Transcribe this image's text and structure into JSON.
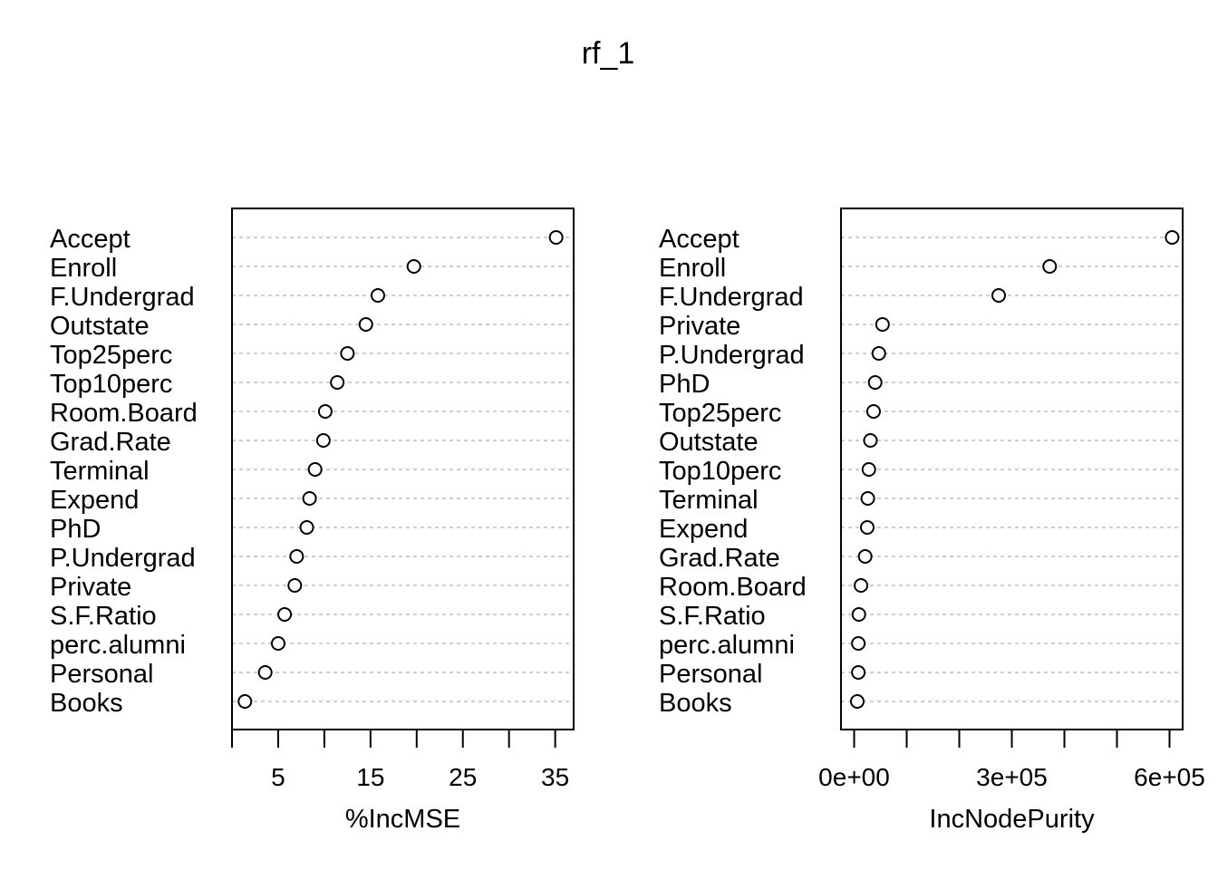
{
  "title": "rf_1",
  "chart_data": [
    {
      "type": "scatter",
      "subtype": "dotchart",
      "xlabel": "%IncMSE",
      "ylabel": "",
      "xlim": [
        0,
        37
      ],
      "ticks": [
        0,
        5,
        10,
        15,
        20,
        25,
        30,
        35
      ],
      "tick_labels": [
        "",
        "5",
        "",
        "15",
        "",
        "25",
        "",
        "35"
      ],
      "grid": true,
      "categories": [
        "Accept",
        "Enroll",
        "F.Undergrad",
        "Outstate",
        "Top25perc",
        "Top10perc",
        "Room.Board",
        "Grad.Rate",
        "Terminal",
        "Expend",
        "PhD",
        "P.Undergrad",
        "Private",
        "S.F.Ratio",
        "perc.alumni",
        "Personal",
        "Books"
      ],
      "values": [
        35.1,
        19.7,
        15.8,
        14.5,
        12.5,
        11.4,
        10.1,
        9.9,
        9.0,
        8.4,
        8.1,
        7.0,
        6.8,
        5.7,
        5.0,
        3.6,
        1.4
      ]
    },
    {
      "type": "scatter",
      "subtype": "dotchart",
      "xlabel": "IncNodePurity",
      "ylabel": "",
      "xlim": [
        -25000,
        625000
      ],
      "ticks": [
        0,
        100000,
        200000,
        300000,
        400000,
        500000,
        600000
      ],
      "tick_labels": [
        "0e+00",
        "",
        "",
        "3e+05",
        "",
        "",
        "6e+05"
      ],
      "grid": true,
      "categories": [
        "Accept",
        "Enroll",
        "F.Undergrad",
        "Private",
        "P.Undergrad",
        "PhD",
        "Top25perc",
        "Outstate",
        "Top10perc",
        "Terminal",
        "Expend",
        "Grad.Rate",
        "Room.Board",
        "S.F.Ratio",
        "perc.alumni",
        "Personal",
        "Books"
      ],
      "values": [
        605000,
        372000,
        275000,
        54000,
        47000,
        40000,
        37000,
        31000,
        28000,
        26000,
        25000,
        21000,
        13000,
        9000,
        8000,
        8000,
        6000
      ]
    }
  ]
}
